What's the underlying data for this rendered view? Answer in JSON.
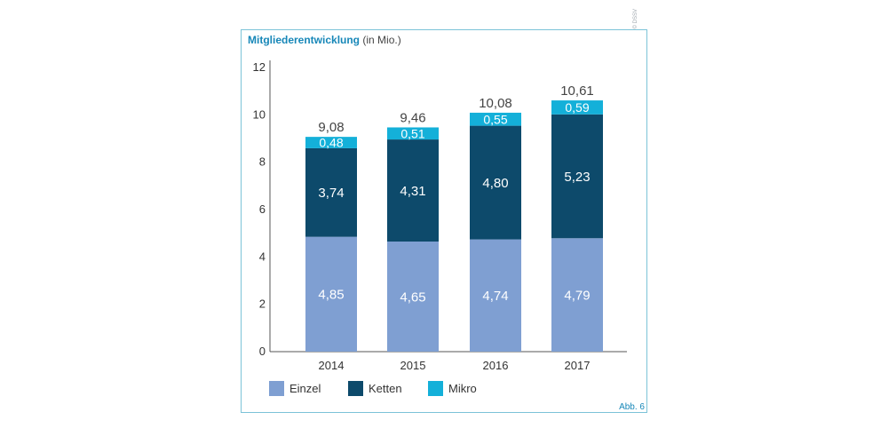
{
  "header": {
    "title": "Mitgliederentwicklung",
    "subtitle": "(in Mio.)",
    "credit": "© DSSV",
    "figure_label": "Abb. 6"
  },
  "colors": {
    "Einzel": "#7f9fd2",
    "Ketten": "#0d4a6b",
    "Mikro": "#14b0d9",
    "accent": "#1787b8",
    "border": "#7cc3d8"
  },
  "chart_data": {
    "type": "bar",
    "stacked": true,
    "title": "Mitgliederentwicklung",
    "subtitle": "(in Mio.)",
    "xlabel": "",
    "ylabel": "",
    "categories": [
      "2014",
      "2015",
      "2016",
      "2017"
    ],
    "series": [
      {
        "name": "Einzel",
        "values": [
          4.85,
          4.65,
          4.74,
          4.79
        ],
        "labels": [
          "4,85",
          "4,65",
          "4,74",
          "4,79"
        ]
      },
      {
        "name": "Ketten",
        "values": [
          3.74,
          4.31,
          4.8,
          5.23
        ],
        "labels": [
          "3,74",
          "4,31",
          "4,80",
          "5,23"
        ]
      },
      {
        "name": "Mikro",
        "values": [
          0.48,
          0.51,
          0.55,
          0.59
        ],
        "labels": [
          "0,48",
          "0,51",
          "0,55",
          "0,59"
        ]
      }
    ],
    "totals": [
      9.08,
      9.46,
      10.08,
      10.61
    ],
    "total_labels": [
      "9,08",
      "9,46",
      "10,08",
      "10,61"
    ],
    "ylim": [
      0,
      12
    ],
    "yticks": [
      0,
      2,
      4,
      6,
      8,
      10,
      12
    ],
    "ytick_labels": [
      "0",
      "2",
      "4",
      "6",
      "8",
      "10",
      "12"
    ],
    "grid": false,
    "legend": "bottom",
    "legend_entries": [
      "Einzel",
      "Ketten",
      "Mikro"
    ]
  }
}
